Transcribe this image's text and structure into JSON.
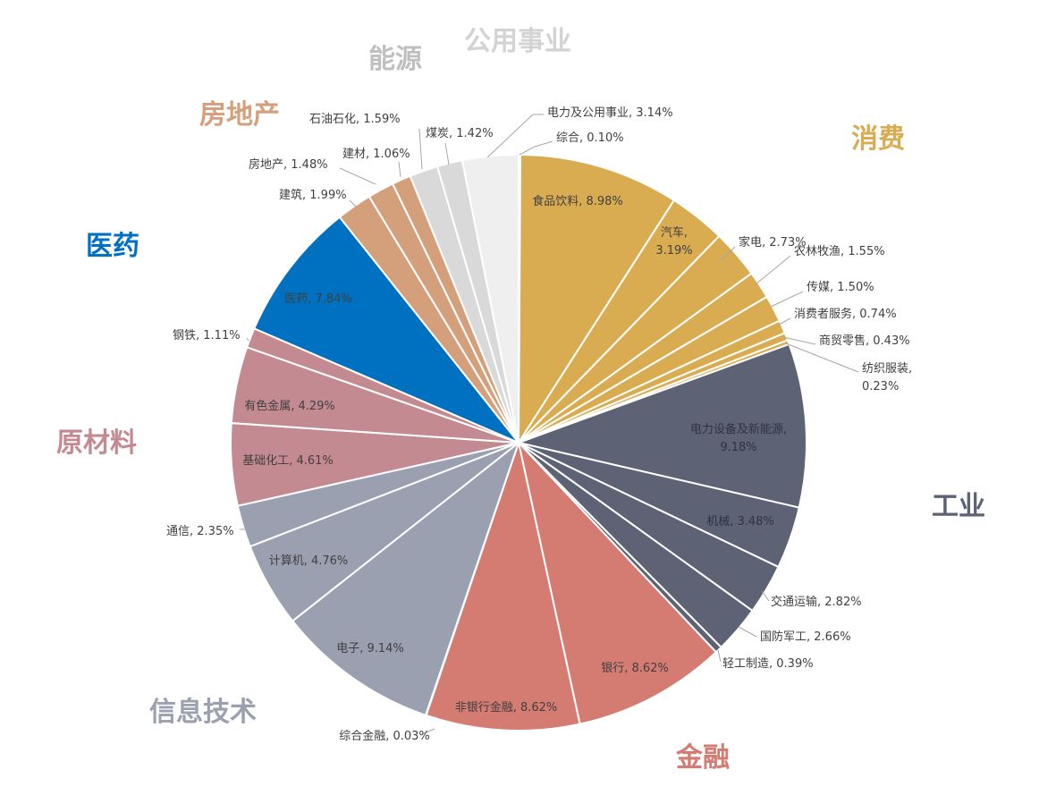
{
  "chart_data": {
    "type": "pie",
    "start_angle_deg": 0,
    "direction": "clockwise",
    "slices": [
      {
        "name": "综合",
        "value": 0.1,
        "label": "综合, 0.10%",
        "group": "公用事业"
      },
      {
        "name": "食品饮料",
        "value": 8.98,
        "label": "食品饮料, 8.98%",
        "group": "消费"
      },
      {
        "name": "汽车",
        "value": 3.19,
        "label": "汽车, 3.19%",
        "group": "消费"
      },
      {
        "name": "家电",
        "value": 2.73,
        "label": "家电, 2.73%",
        "group": "消费"
      },
      {
        "name": "农林牧渔",
        "value": 1.55,
        "label": "农林牧渔, 1.55%",
        "group": "消费"
      },
      {
        "name": "传媒",
        "value": 1.5,
        "label": "传媒, 1.50%",
        "group": "消费"
      },
      {
        "name": "消费者服务",
        "value": 0.74,
        "label": "消费者服务, 0.74%",
        "group": "消费"
      },
      {
        "name": "商贸零售",
        "value": 0.43,
        "label": "商贸零售, 0.43%",
        "group": "消费"
      },
      {
        "name": "纺织服装",
        "value": 0.23,
        "label": "纺织服装, 0.23%",
        "group": "消费"
      },
      {
        "name": "电力设备及新能源",
        "value": 9.18,
        "label": "电力设备及新能源, 9.18%",
        "group": "工业"
      },
      {
        "name": "机械",
        "value": 3.48,
        "label": "机械, 3.48%",
        "group": "工业"
      },
      {
        "name": "交通运输",
        "value": 2.82,
        "label": "交通运输, 2.82%",
        "group": "工业"
      },
      {
        "name": "国防军工",
        "value": 2.66,
        "label": "国防军工, 2.66%",
        "group": "工业"
      },
      {
        "name": "轻工制造",
        "value": 0.39,
        "label": "轻工制造, 0.39%",
        "group": "工业"
      },
      {
        "name": "银行",
        "value": 8.62,
        "label": "银行, 8.62%",
        "group": "金融"
      },
      {
        "name": "非银行金融",
        "value": 8.62,
        "label": "非银行金融, 8.62%",
        "group": "金融"
      },
      {
        "name": "综合金融",
        "value": 0.03,
        "label": "综合金融, 0.03%",
        "group": "金融"
      },
      {
        "name": "电子",
        "value": 9.14,
        "label": "电子, 9.14%",
        "group": "信息技术"
      },
      {
        "name": "计算机",
        "value": 4.76,
        "label": "计算机, 4.76%",
        "group": "信息技术"
      },
      {
        "name": "通信",
        "value": 2.35,
        "label": "通信, 2.35%",
        "group": "信息技术"
      },
      {
        "name": "基础化工",
        "value": 4.61,
        "label": "基础化工, 4.61%",
        "group": "原材料"
      },
      {
        "name": "有色金属",
        "value": 4.29,
        "label": "有色金属, 4.29%",
        "group": "原材料"
      },
      {
        "name": "钢铁",
        "value": 1.11,
        "label": "钢铁, 1.11%",
        "group": "原材料"
      },
      {
        "name": "医药",
        "value": 7.84,
        "label": "医药, 7.84%",
        "group": "医药"
      },
      {
        "name": "建筑",
        "value": 1.99,
        "label": "建筑, 1.99%",
        "group": "房地产"
      },
      {
        "name": "房地产",
        "value": 1.48,
        "label": "房地产, 1.48%",
        "group": "房地产"
      },
      {
        "name": "建材",
        "value": 1.06,
        "label": "建材, 1.06%",
        "group": "房地产"
      },
      {
        "name": "石油石化",
        "value": 1.59,
        "label": "石油石化, 1.59%",
        "group": "能源"
      },
      {
        "name": "煤炭",
        "value": 1.42,
        "label": "煤炭, 1.42%",
        "group": "能源"
      },
      {
        "name": "电力及公用事业",
        "value": 3.14,
        "label": "电力及公用事业, 3.14%",
        "group": "公用事业"
      }
    ],
    "groups": [
      {
        "name": "消费",
        "color": "#D9AC52",
        "title_color": "#D9AC52"
      },
      {
        "name": "工业",
        "color": "#5D6375",
        "title_color": "#5D6375"
      },
      {
        "name": "金融",
        "color": "#D47B72",
        "title_color": "#D47B72"
      },
      {
        "name": "信息技术",
        "color": "#9AA0AF",
        "title_color": "#9AA0AF"
      },
      {
        "name": "原材料",
        "color": "#C48A92",
        "title_color": "#C48A92"
      },
      {
        "name": "医药",
        "color": "#0070C0",
        "title_color": "#0070C0"
      },
      {
        "name": "房地产",
        "color": "#D4A07C",
        "title_color": "#D4A07C"
      },
      {
        "name": "能源",
        "color": "#D9D9D9",
        "title_color": "#BFBFBF"
      },
      {
        "name": "公用事业",
        "color": "#EFEFEF",
        "title_color": "#D3D3D3"
      }
    ]
  }
}
